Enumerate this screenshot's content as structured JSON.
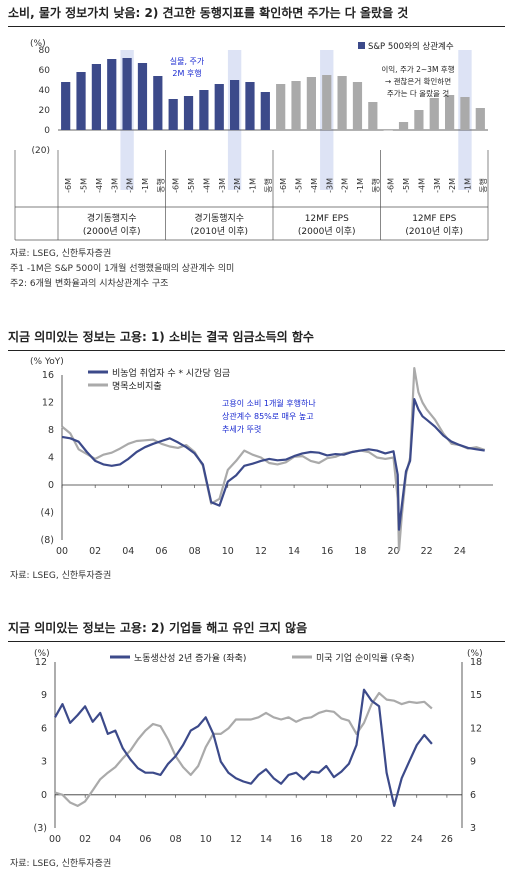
{
  "colors": {
    "accent": "#3c4a8a",
    "gray": "#aaaaaa",
    "shade": "#dde3f5",
    "annotation": "#1a2ad0"
  },
  "chart1": {
    "title": "소비, 물가 정보가치 낮음: 2) 견고한 동행지표를 확인하면 주가는 다 올랐을 것",
    "unit": "(%)",
    "legend": "S&P 500와의 상관계수",
    "annotation1": [
      "실물, 주가",
      "2M 후행"
    ],
    "annotation2": [
      "이익, 주가 2~3M 후행",
      "→ 괜찮은거 확인하면",
      "주가는 다 올랐을 것"
    ],
    "notes": [
      "자료: LSEG, 신한투자증권",
      "주1 -1M은 S&P 500이 1개월 선행했을때의 상관계수 의미",
      "주2: 6개월 변화율과의 시차상관계수 구조"
    ]
  },
  "chart2": {
    "title": "지금 의미있는 정보는 고용: 1) 소비는 결국 임금소득의 함수",
    "unit": "(% YoY)",
    "legend": [
      "비농업 취업자 수 * 시간당 임금",
      "명목소비지출"
    ],
    "annotation": [
      "고용이 소비 1개월 후행하나",
      "상관계수 85%로 매우 높고",
      "추세가 뚜렷"
    ],
    "note": "자료: LSEG, 신한투자증권"
  },
  "chart3": {
    "title": "지금 의미있는 정보는 고용: 2) 기업들 해고 유인 크지 않음",
    "unit_left": "(%)",
    "unit_right": "(%)",
    "legend": [
      "노동생산성 2년 증가율 (좌축)",
      "미국 기업 순이익률 (우축)"
    ],
    "note": "자료: LSEG, 신한투자증권"
  },
  "chart_data": [
    {
      "type": "bar",
      "title": "소비, 물가 정보가치 낮음: 2) 견고한 동행지표를 확인하면 주가는 다 올랐을 것",
      "ylabel": "(%)",
      "ylim": [
        -20,
        80
      ],
      "yticks": [
        "(20)",
        "0",
        "20",
        "40",
        "60",
        "80"
      ],
      "categories": [
        "-6M",
        "-5M",
        "-4M",
        "-3M",
        "-2M",
        "-1M",
        "동행",
        "-6M",
        "-5M",
        "-4M",
        "-3M",
        "-2M",
        "-1M",
        "동행",
        "-6M",
        "-5M",
        "-4M",
        "-3M",
        "-2M",
        "-1M",
        "동행",
        "-6M",
        "-5M",
        "-4M",
        "-3M",
        "-2M",
        "-1M",
        "동행"
      ],
      "groups": [
        {
          "label": [
            "경기동행지수",
            "(2000년 이후)"
          ],
          "color": "#3c4a8a",
          "values": [
            48,
            58,
            66,
            71,
            72,
            67,
            54
          ],
          "highlight": 4
        },
        {
          "label": [
            "경기동행지수",
            "(2010년 이후)"
          ],
          "color": "#3c4a8a",
          "values": [
            31,
            34,
            40,
            46,
            50,
            48,
            38
          ],
          "highlight": 4
        },
        {
          "label": [
            "12MF EPS",
            "(2000년 이후)"
          ],
          "color": "#aaaaaa",
          "values": [
            46,
            49,
            53,
            55,
            54,
            48,
            28
          ],
          "highlight": 3
        },
        {
          "label": [
            "12MF EPS",
            "(2010년 이후)"
          ],
          "color": "#aaaaaa",
          "values": [
            0,
            8,
            20,
            32,
            35,
            33,
            22
          ],
          "highlight": 5
        }
      ],
      "legend": "S&P 500와의 상관계수",
      "legend_position": "top-right"
    },
    {
      "type": "line",
      "title": "지금 의미있는 정보는 고용: 1) 소비는 결국 임금소득의 함수",
      "ylabel": "(% YoY)",
      "ylim": [
        -8,
        16
      ],
      "yticks": [
        "(8)",
        "(4)",
        "0",
        "4",
        "8",
        "12",
        "16"
      ],
      "xlim": [
        2000,
        2026
      ],
      "xticks": [
        "00",
        "02",
        "04",
        "06",
        "08",
        "10",
        "12",
        "14",
        "16",
        "18",
        "20",
        "22",
        "24"
      ],
      "series": [
        {
          "name": "비농업 취업자 수 * 시간당 임금",
          "color": "#3c4a8a",
          "x": [
            2000,
            2000.5,
            2001,
            2001.5,
            2002,
            2002.5,
            2003,
            2003.5,
            2004,
            2004.5,
            2005,
            2005.5,
            2006,
            2006.5,
            2007,
            2007.5,
            2008,
            2008.5,
            2009,
            2009.5,
            2010,
            2010.5,
            2011,
            2011.5,
            2012,
            2012.5,
            2013,
            2013.5,
            2014,
            2014.5,
            2015,
            2015.5,
            2016,
            2016.5,
            2017,
            2017.5,
            2018,
            2018.5,
            2019,
            2019.5,
            2020,
            2020.25,
            2020.33,
            2020.5,
            2020.75,
            2021,
            2021.25,
            2021.5,
            2021.75,
            2022,
            2022.5,
            2023,
            2023.5,
            2024,
            2024.5,
            2025,
            2025.5
          ],
          "y": [
            7.0,
            6.8,
            6.3,
            4.8,
            3.5,
            3.0,
            2.8,
            3.0,
            3.8,
            4.8,
            5.5,
            6.0,
            6.4,
            6.8,
            6.2,
            5.5,
            4.6,
            3.0,
            -2.5,
            -3.0,
            0.5,
            1.4,
            2.8,
            3.1,
            3.5,
            3.8,
            3.6,
            3.7,
            4.2,
            4.6,
            4.8,
            4.7,
            4.3,
            4.5,
            4.4,
            4.8,
            5.0,
            5.2,
            5.0,
            4.6,
            4.9,
            1.5,
            -6.5,
            -3.0,
            2.0,
            3.5,
            12.5,
            11.0,
            10.0,
            9.5,
            8.5,
            7.2,
            6.3,
            5.8,
            5.4,
            5.2,
            5.0
          ]
        },
        {
          "name": "명목소비지출",
          "color": "#aaaaaa",
          "x": [
            2000,
            2000.5,
            2001,
            2001.5,
            2002,
            2002.5,
            2003,
            2003.5,
            2004,
            2004.5,
            2005,
            2005.5,
            2006,
            2006.5,
            2007,
            2007.5,
            2008,
            2008.5,
            2009,
            2009.5,
            2010,
            2010.5,
            2011,
            2011.5,
            2012,
            2012.5,
            2013,
            2013.5,
            2014,
            2014.5,
            2015,
            2015.5,
            2016,
            2016.5,
            2017,
            2017.5,
            2018,
            2018.5,
            2019,
            2019.5,
            2020,
            2020.25,
            2020.33,
            2020.5,
            2020.75,
            2021,
            2021.25,
            2021.5,
            2021.75,
            2022,
            2022.5,
            2023,
            2023.5,
            2024,
            2024.5,
            2025,
            2025.5
          ],
          "y": [
            8.5,
            7.5,
            5.2,
            4.5,
            3.8,
            4.4,
            4.7,
            5.3,
            6.0,
            6.4,
            6.5,
            6.6,
            6.0,
            5.6,
            5.4,
            5.8,
            4.8,
            2.8,
            -2.7,
            -2.0,
            2.2,
            3.5,
            5.0,
            4.4,
            4.0,
            3.2,
            3.0,
            3.3,
            4.1,
            4.2,
            3.5,
            3.2,
            3.9,
            4.1,
            4.6,
            4.8,
            5.0,
            4.8,
            4.0,
            3.8,
            4.0,
            -2.0,
            -9.5,
            -4.5,
            1.5,
            4.0,
            17.0,
            13.5,
            12.0,
            11.0,
            9.5,
            7.5,
            6.0,
            5.8,
            5.3,
            5.5,
            5.1
          ]
        }
      ],
      "annotation": [
        "고용이 소비 1개월 후행하나",
        "상관계수 85%로 매우 높고",
        "추세가 뚜렷"
      ],
      "legend_position": "top-left"
    },
    {
      "type": "line",
      "title": "지금 의미있는 정보는 고용: 2) 기업들 해고 유인 크지 않음",
      "ylabel": "(%)",
      "ylim_left": [
        -3,
        12
      ],
      "ylim_right": [
        3,
        18
      ],
      "yticks_left": [
        "(3)",
        "0",
        "3",
        "6",
        "9",
        "12"
      ],
      "yticks_right": [
        "3",
        "6",
        "9",
        "12",
        "15",
        "18"
      ],
      "xlim": [
        2000,
        2027
      ],
      "xticks": [
        "00",
        "02",
        "04",
        "06",
        "08",
        "10",
        "12",
        "14",
        "16",
        "18",
        "20",
        "22",
        "24",
        "26"
      ],
      "series": [
        {
          "name": "노동생산성 2년 증가율 (좌축)",
          "color": "#3c4a8a",
          "axis": "left",
          "x": [
            2000,
            2000.5,
            2001,
            2001.5,
            2002,
            2002.5,
            2003,
            2003.5,
            2004,
            2004.5,
            2005,
            2005.5,
            2006,
            2006.5,
            2007,
            2007.5,
            2008,
            2008.5,
            2009,
            2009.5,
            2010,
            2010.5,
            2011,
            2011.5,
            2012,
            2012.5,
            2013,
            2013.5,
            2014,
            2014.5,
            2015,
            2015.5,
            2016,
            2016.5,
            2017,
            2017.5,
            2018,
            2018.5,
            2019,
            2019.5,
            2020,
            2020.5,
            2021,
            2021.5,
            2022,
            2022.5,
            2023,
            2023.5,
            2024,
            2024.5,
            2025
          ],
          "y": [
            7.0,
            8.2,
            6.5,
            7.2,
            8.0,
            6.6,
            7.4,
            5.5,
            5.8,
            4.2,
            3.2,
            2.4,
            2.0,
            2.0,
            1.8,
            2.8,
            3.5,
            4.5,
            5.8,
            6.2,
            7.0,
            5.5,
            3.0,
            2.0,
            1.5,
            1.2,
            1.0,
            1.8,
            2.3,
            1.5,
            1.0,
            1.8,
            2.0,
            1.4,
            2.1,
            2.0,
            2.6,
            1.6,
            2.1,
            2.8,
            4.5,
            9.5,
            8.5,
            8.0,
            2.0,
            -1.0,
            1.5,
            3.0,
            4.5,
            5.4,
            4.6
          ]
        },
        {
          "name": "미국 기업 순이익률 (우축)",
          "color": "#aaaaaa",
          "axis": "right",
          "x": [
            2000,
            2000.5,
            2001,
            2001.5,
            2002,
            2002.5,
            2003,
            2003.5,
            2004,
            2004.5,
            2005,
            2005.5,
            2006,
            2006.5,
            2007,
            2007.5,
            2008,
            2008.5,
            2009,
            2009.5,
            2010,
            2010.5,
            2011,
            2011.5,
            2012,
            2012.5,
            2013,
            2013.5,
            2014,
            2014.5,
            2015,
            2015.5,
            2016,
            2016.5,
            2017,
            2017.5,
            2018,
            2018.5,
            2019,
            2019.5,
            2020,
            2020.5,
            2021,
            2021.5,
            2022,
            2022.5,
            2023,
            2023.5,
            2024,
            2024.5,
            2025
          ],
          "y": [
            6.2,
            6.0,
            5.3,
            5.0,
            5.4,
            6.4,
            7.4,
            8.0,
            8.5,
            9.3,
            10.0,
            11.0,
            11.8,
            12.4,
            12.2,
            11.0,
            9.5,
            8.5,
            7.8,
            8.6,
            10.3,
            11.5,
            11.5,
            12.0,
            12.8,
            12.8,
            12.8,
            13.0,
            13.4,
            13.0,
            12.8,
            13.0,
            12.6,
            12.9,
            13.0,
            13.4,
            13.6,
            13.5,
            12.9,
            12.7,
            11.5,
            12.5,
            14.2,
            15.2,
            14.6,
            14.5,
            14.2,
            14.4,
            14.3,
            14.4,
            13.8
          ]
        }
      ],
      "legend_position": "top"
    }
  ]
}
